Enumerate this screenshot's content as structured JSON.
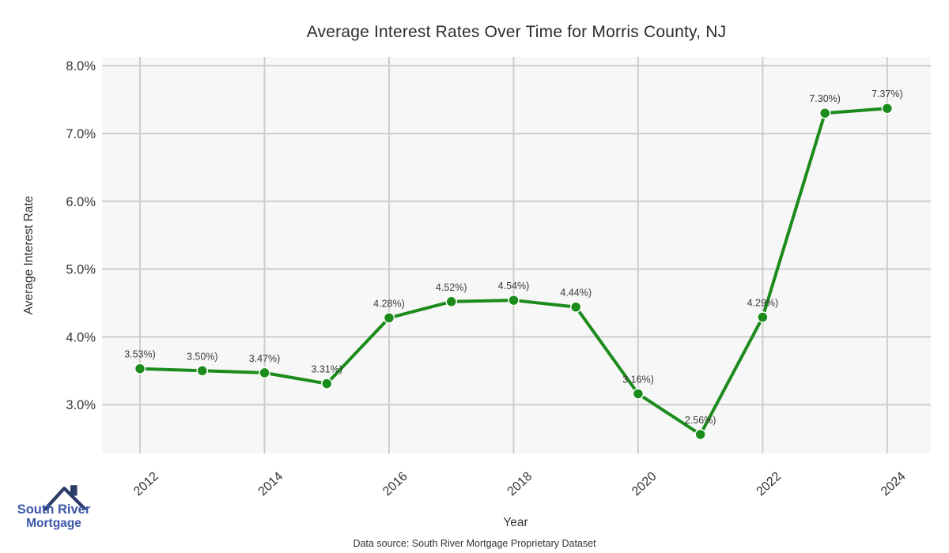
{
  "title": "Average Interest Rates Over Time for Morris County, NJ",
  "footer": {
    "source": "Data source: South River Mortgage Proprietary Dataset"
  },
  "logo": {
    "line1": "South River",
    "line2": "Mortgage"
  },
  "colors": {
    "line": "#1b8b1b",
    "marker": "#1b8b1b",
    "marker_edge": "#ffffff",
    "plot_bg": "#f7f7f8",
    "grid": "#cdcdcd",
    "tick_text": "#333333",
    "point_label_text": "#3a3a3a",
    "logo_navy": "#2b3a67",
    "logo_blue": "#3c57a9"
  },
  "chart_data": {
    "type": "line",
    "title": "Average Interest Rates Over Time for Morris County, NJ",
    "xlabel": "Year",
    "ylabel": "Average Interest Rate",
    "x": [
      2012,
      2013,
      2014,
      2015,
      2016,
      2017,
      2018,
      2019,
      2020,
      2021,
      2022,
      2023,
      2024
    ],
    "values": [
      3.53,
      3.5,
      3.47,
      3.31,
      4.28,
      4.52,
      4.54,
      4.44,
      3.16,
      2.56,
      4.29,
      7.3,
      7.37
    ],
    "point_labels": [
      "3.53%)",
      "3.50%)",
      "3.47%)",
      "3.31%)",
      "4.28%)",
      "4.52%)",
      "4.54%)",
      "4.44%)",
      "3.16%)",
      "2.56%)",
      "4.29%)",
      "7.30%)",
      "7.37%)"
    ],
    "x_ticks": [
      2012,
      2014,
      2016,
      2018,
      2020,
      2022,
      2024
    ],
    "x_tick_labels": [
      "2012",
      "2014",
      "2016",
      "2018",
      "2020",
      "2022",
      "2024"
    ],
    "y_ticks": [
      3,
      4,
      5,
      6,
      7,
      8
    ],
    "y_tick_labels": [
      "3.0%",
      "4.0%",
      "5.0%",
      "6.0%",
      "7.0%",
      "8.0%"
    ],
    "xlim": [
      2011.39,
      2024.7
    ],
    "ylim": [
      2.28,
      8.13
    ],
    "grid": true,
    "legend": "none"
  }
}
